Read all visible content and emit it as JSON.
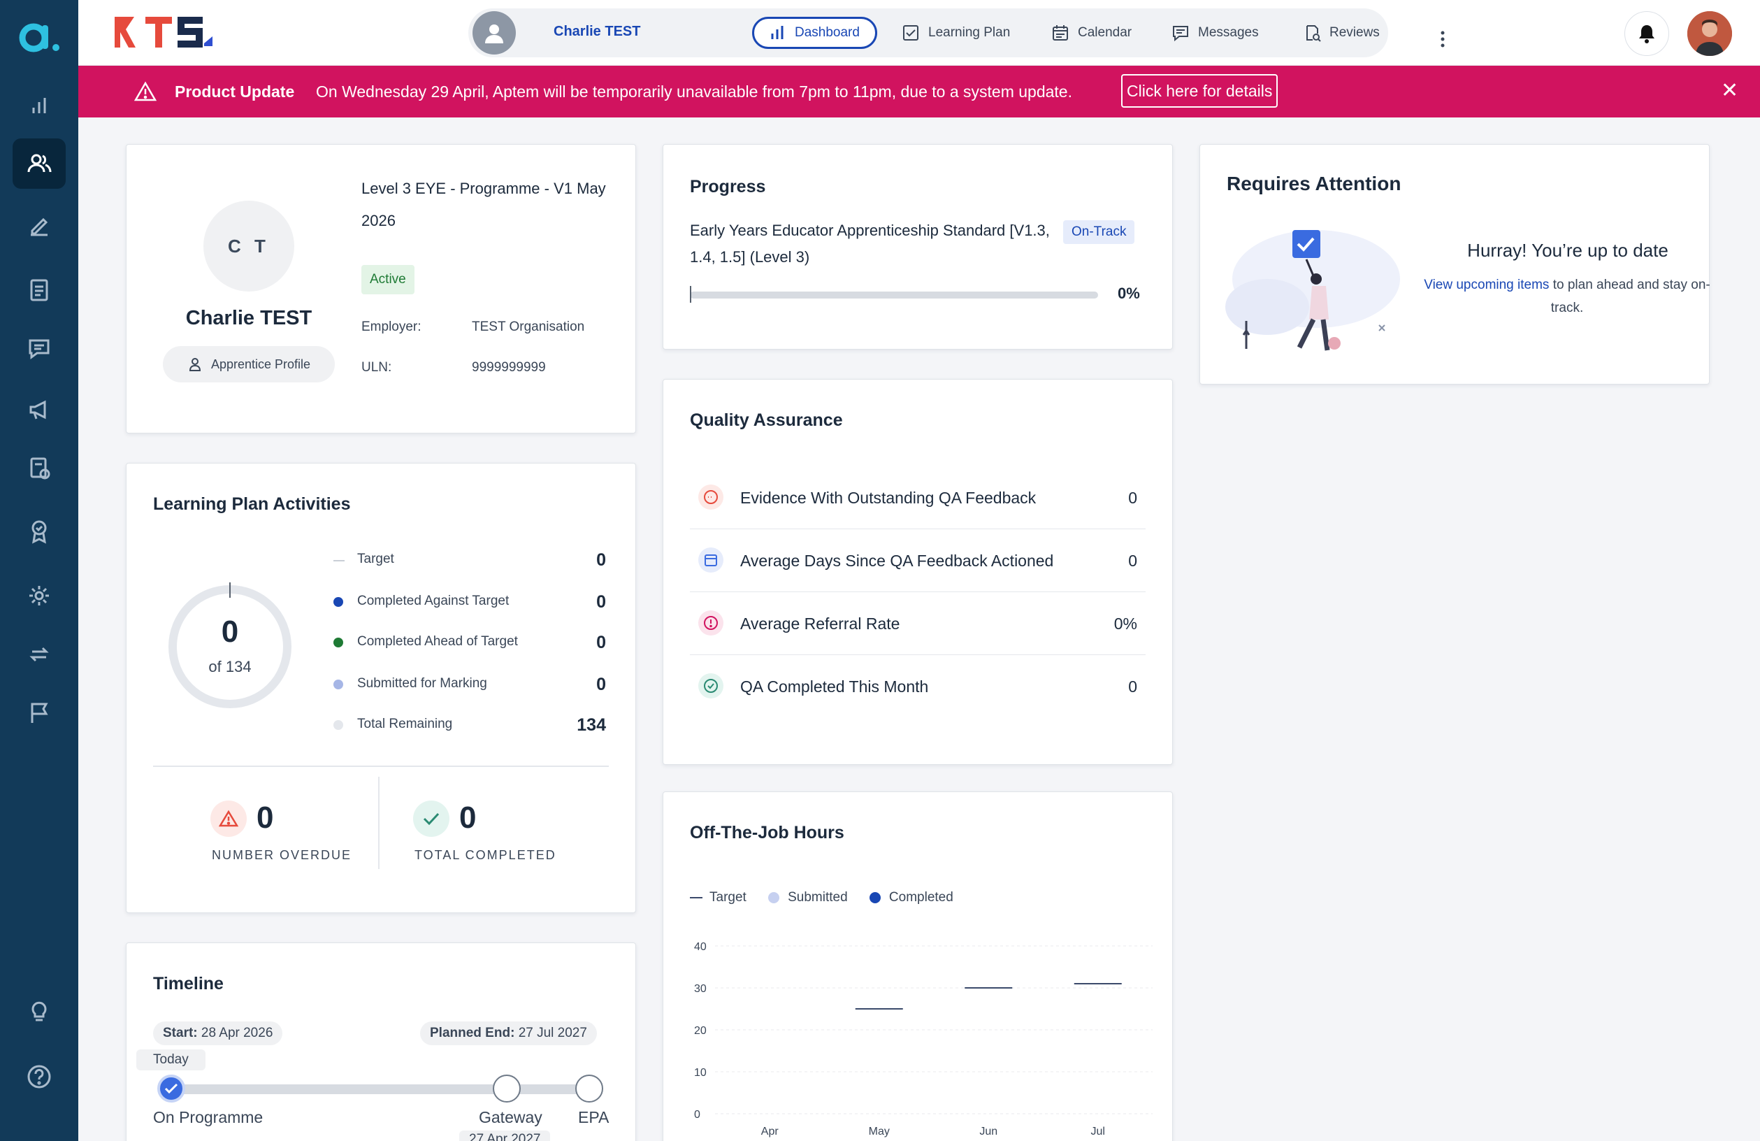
{
  "header": {
    "learner_name": "Charlie TEST",
    "tabs": [
      {
        "label": "Dashboard",
        "icon": "bar-chart-icon"
      },
      {
        "label": "Learning Plan",
        "icon": "checkbox-icon"
      },
      {
        "label": "Calendar",
        "icon": "calendar-icon"
      },
      {
        "label": "Messages",
        "icon": "message-icon"
      },
      {
        "label": "Reviews",
        "icon": "review-icon"
      }
    ],
    "brand_text": "RTS"
  },
  "banner": {
    "title": "Product Update",
    "message": "On Wednesday 29 April, Aptem will be temporarily unavailable from 7pm to 11pm, due to a system update.",
    "button_label": "Click here for details",
    "color": "#d1135f"
  },
  "profile": {
    "initials": "C T",
    "name": "Charlie TEST",
    "profile_button": "Apprentice Profile",
    "programme": "Level 3 EYE - Programme - V1 May 2026",
    "status": "Active",
    "employer_label": "Employer:",
    "employer_value": "TEST Organisation",
    "uln_label": "ULN:",
    "uln_value": "9999999999"
  },
  "progress": {
    "title": "Progress",
    "standard": "Early Years Educator Apprenticeship Standard [V1.3, 1.4, 1.5] (Level 3)",
    "badge": "On-Track",
    "percent_label": "0%",
    "percent": 0
  },
  "attention": {
    "title": "Requires Attention",
    "headline": "Hurray! You’re up to date",
    "link_text": "View upcoming items",
    "rest_text": " to plan ahead and stay on-track."
  },
  "learning_plan": {
    "title": "Learning Plan Activities",
    "center_value": "0",
    "center_sub": "of 134",
    "legend": [
      {
        "label": "Target",
        "value": "0",
        "color": "#c9ced6"
      },
      {
        "label": "Completed Against Target",
        "value": "0",
        "color": "#1947b4"
      },
      {
        "label": "Completed Ahead of Target",
        "value": "0",
        "color": "#1e7a34"
      },
      {
        "label": "Submitted for Marking",
        "value": "0",
        "color": "#a6b6e6"
      },
      {
        "label": "Total Remaining",
        "value": "134",
        "color": "#e4e7ec"
      }
    ],
    "overdue_value": "0",
    "overdue_label": "NUMBER OVERDUE",
    "completed_value": "0",
    "completed_label": "TOTAL COMPLETED"
  },
  "qa": {
    "title": "Quality Assurance",
    "rows": [
      {
        "label": "Evidence With Outstanding QA Feedback",
        "value": "0",
        "icon": "feedback-icon"
      },
      {
        "label": "Average Days Since QA Feedback Actioned",
        "value": "0",
        "icon": "calendar-icon"
      },
      {
        "label": "Average Referral Rate",
        "value": "0%",
        "icon": "alert-icon"
      },
      {
        "label": "QA Completed This Month",
        "value": "0",
        "icon": "check-circle-icon"
      }
    ]
  },
  "otj": {
    "title": "Off-The-Job Hours",
    "legend": [
      "Target",
      "Submitted",
      "Completed"
    ]
  },
  "chart_data": {
    "type": "bar",
    "categories": [
      "Apr",
      "May",
      "Jun",
      "Jul"
    ],
    "series": [
      {
        "name": "Target",
        "values": [
          null,
          25,
          30,
          31
        ]
      },
      {
        "name": "Submitted",
        "values": [
          0,
          0,
          0,
          0
        ]
      },
      {
        "name": "Completed",
        "values": [
          0,
          0,
          0,
          0
        ]
      }
    ],
    "yticks": [
      "40",
      "30",
      "20",
      "10",
      "0"
    ],
    "ylim": [
      0,
      40
    ],
    "grid": true,
    "legend_position": "top-left"
  },
  "timeline": {
    "title": "Timeline",
    "start_label": "Start:",
    "start_value": "28 Apr 2026",
    "end_label": "Planned End:",
    "end_value": "27 Jul 2027",
    "today": "Today",
    "nodes": [
      "On Programme",
      "Gateway",
      "EPA"
    ],
    "gateway_date": "27 Apr 2027"
  }
}
